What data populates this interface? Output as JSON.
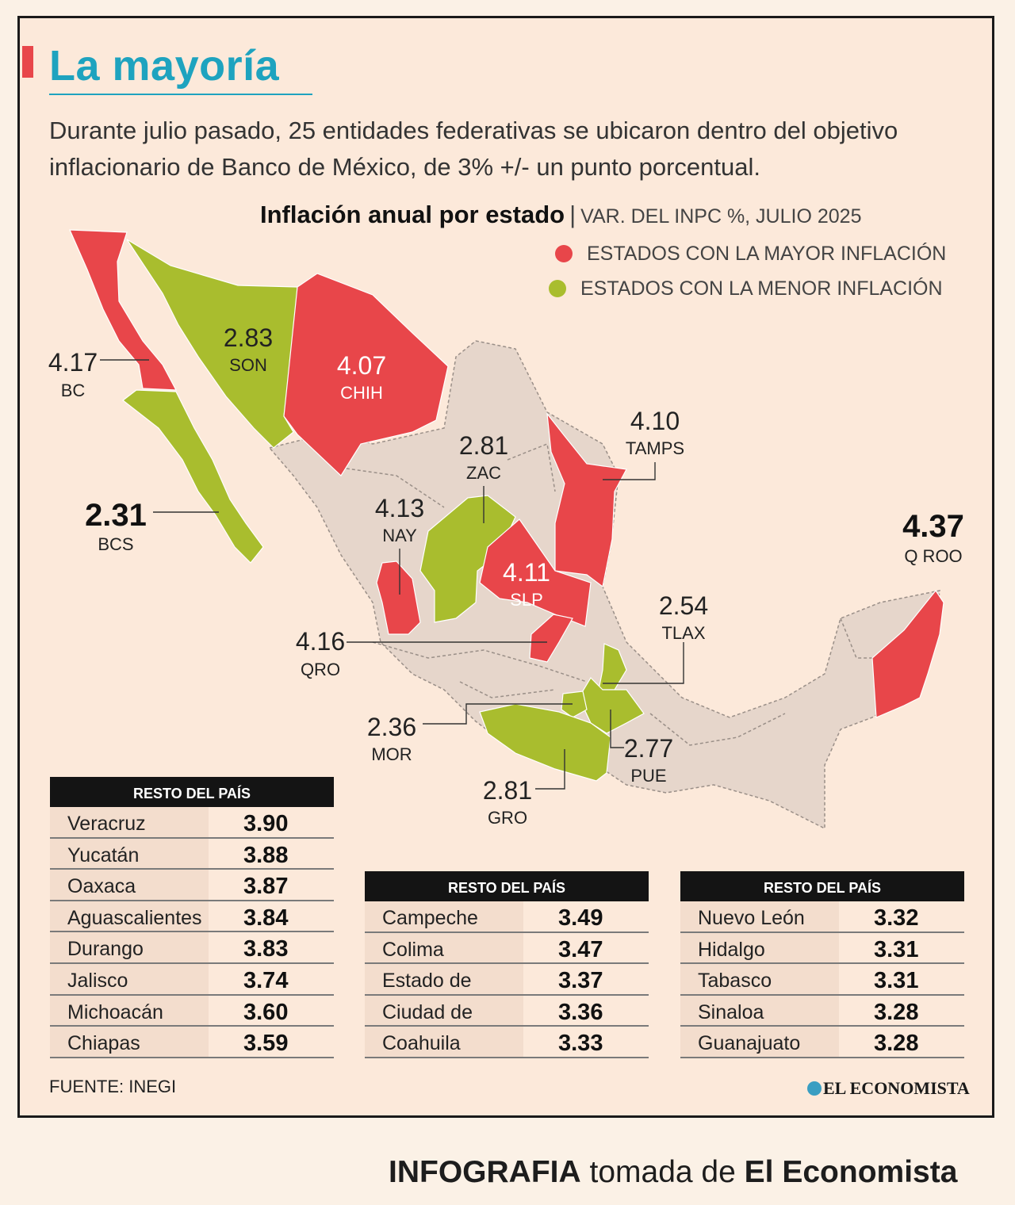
{
  "header": {
    "title": "La mayoría",
    "intro": "Durante julio pasado, 25 entidades federativas se ubicaron dentro del objetivo inflacionario de Banco de México, de 3% +/- un punto porcentual."
  },
  "map": {
    "title": "Inflación anual por estado",
    "separator": "|",
    "subtitle": "VAR. DEL INPC %, JULIO 2025",
    "legend": [
      {
        "label": "ESTADOS CON LA MAYOR INFLACIÓN",
        "color": "#e8464a"
      },
      {
        "label": "ESTADOS CON LA MENOR INFLACIÓN",
        "color": "#a9bd2e"
      }
    ],
    "colors": {
      "high": "#e8464a",
      "low": "#a9bd2e",
      "rest": "#e6d6cb",
      "rest_border": "#9a8f88"
    },
    "states": [
      {
        "code": "BC",
        "value": "4.17",
        "group": "high"
      },
      {
        "code": "BCS",
        "value": "2.31",
        "group": "low"
      },
      {
        "code": "SON",
        "value": "2.83",
        "group": "low"
      },
      {
        "code": "CHIH",
        "value": "4.07",
        "group": "high"
      },
      {
        "code": "TAMPS",
        "value": "4.10",
        "group": "high"
      },
      {
        "code": "ZAC",
        "value": "2.81",
        "group": "low"
      },
      {
        "code": "NAY",
        "value": "4.13",
        "group": "high"
      },
      {
        "code": "SLP",
        "value": "4.11",
        "group": "high"
      },
      {
        "code": "Q ROO",
        "value": "4.37",
        "group": "high"
      },
      {
        "code": "QRO",
        "value": "4.16",
        "group": "high"
      },
      {
        "code": "TLAX",
        "value": "2.54",
        "group": "low"
      },
      {
        "code": "MOR",
        "value": "2.36",
        "group": "low"
      },
      {
        "code": "PUE",
        "value": "2.77",
        "group": "low"
      },
      {
        "code": "GRO",
        "value": "2.81",
        "group": "low"
      }
    ]
  },
  "tables": [
    {
      "header": "RESTO DEL PAÍS",
      "rows": [
        {
          "name": "Veracruz",
          "value": "3.90"
        },
        {
          "name": "Yucatán",
          "value": "3.88"
        },
        {
          "name": "Oaxaca",
          "value": "3.87"
        },
        {
          "name": "Aguascalientes",
          "value": "3.84"
        },
        {
          "name": "Durango",
          "value": "3.83"
        },
        {
          "name": "Jalisco",
          "value": "3.74"
        },
        {
          "name": "Michoacán",
          "value": "3.60"
        },
        {
          "name": "Chiapas",
          "value": "3.59"
        }
      ]
    },
    {
      "header": "RESTO DEL PAÍS",
      "rows": [
        {
          "name": "Campeche",
          "value": "3.49"
        },
        {
          "name": "Colima",
          "value": "3.47"
        },
        {
          "name": "Estado de México",
          "value": "3.37"
        },
        {
          "name": "Ciudad de México",
          "value": "3.36"
        },
        {
          "name": "Coahuila",
          "value": "3.33"
        }
      ]
    },
    {
      "header": "RESTO DEL PAÍS",
      "rows": [
        {
          "name": "Nuevo León",
          "value": "3.32"
        },
        {
          "name": "Hidalgo",
          "value": "3.31"
        },
        {
          "name": "Tabasco",
          "value": "3.31"
        },
        {
          "name": "Sinaloa",
          "value": "3.28"
        },
        {
          "name": "Guanajuato",
          "value": "3.28"
        }
      ]
    }
  ],
  "footer": {
    "source": "FUENTE: INEGI",
    "brand": "EL ECONOMISTA",
    "credit_bold_1": "INFOGRAFIA",
    "credit_mid": "tomada de",
    "credit_bold_2": "El Economista"
  }
}
